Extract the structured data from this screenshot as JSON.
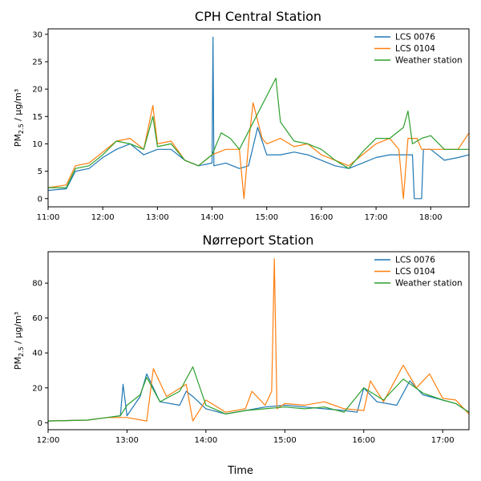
{
  "figure": {
    "xlabel": "Time",
    "ylabel_main": "PM",
    "ylabel_sub": "2.5",
    "ylabel_unit": " / µg/m³"
  },
  "chart_data": [
    {
      "type": "line",
      "title": "CPH Central Station",
      "xlabel": "",
      "ylabel": "PM2.5 / µg/m³",
      "x_unit": "time",
      "xlim": [
        "11:00",
        "18:42"
      ],
      "ylim": [
        -1.5,
        31
      ],
      "x_ticks": [
        "11:00",
        "12:00",
        "13:00",
        "14:00",
        "15:00",
        "16:00",
        "17:00",
        "18:00"
      ],
      "y_ticks": [
        0,
        5,
        10,
        15,
        20,
        25,
        30
      ],
      "grid": false,
      "legend_position": "top-right",
      "series": [
        {
          "name": "LCS 0076",
          "color": "#1f77b4",
          "points": [
            [
              "11:00",
              1.5
            ],
            [
              "11:20",
              1.8
            ],
            [
              "11:30",
              5
            ],
            [
              "11:45",
              5.5
            ],
            [
              "12:00",
              7.5
            ],
            [
              "12:15",
              9
            ],
            [
              "12:30",
              10
            ],
            [
              "12:45",
              8
            ],
            [
              "13:00",
              9
            ],
            [
              "13:15",
              9
            ],
            [
              "13:30",
              7
            ],
            [
              "13:45",
              6
            ],
            [
              "14:00",
              6.5
            ],
            [
              "14:01",
              29.5
            ],
            [
              "14:02",
              6
            ],
            [
              "14:15",
              6.5
            ],
            [
              "14:30",
              5.5
            ],
            [
              "14:40",
              6
            ],
            [
              "14:50",
              13
            ],
            [
              "15:00",
              8
            ],
            [
              "15:15",
              8
            ],
            [
              "15:30",
              8.5
            ],
            [
              "15:45",
              8
            ],
            [
              "16:00",
              7
            ],
            [
              "16:15",
              6
            ],
            [
              "16:30",
              5.5
            ],
            [
              "16:45",
              6.5
            ],
            [
              "17:00",
              7.5
            ],
            [
              "17:15",
              8
            ],
            [
              "17:30",
              8
            ],
            [
              "17:40",
              8
            ],
            [
              "17:42",
              0
            ],
            [
              "17:50",
              0
            ],
            [
              "17:52",
              9
            ],
            [
              "18:00",
              9
            ],
            [
              "18:15",
              7
            ],
            [
              "18:30",
              7.5
            ],
            [
              "18:42",
              8
            ]
          ]
        },
        {
          "name": "LCS 0104",
          "color": "#ff7f0e",
          "points": [
            [
              "11:00",
              2
            ],
            [
              "11:20",
              2.5
            ],
            [
              "11:30",
              6
            ],
            [
              "11:45",
              6.5
            ],
            [
              "12:00",
              8.5
            ],
            [
              "12:15",
              10.5
            ],
            [
              "12:30",
              11
            ],
            [
              "12:45",
              9
            ],
            [
              "12:55",
              17
            ],
            [
              "13:00",
              10
            ],
            [
              "13:15",
              10.5
            ],
            [
              "13:30",
              7
            ],
            [
              "13:45",
              6
            ],
            [
              "14:00",
              8
            ],
            [
              "14:15",
              9
            ],
            [
              "14:30",
              9
            ],
            [
              "14:35",
              0
            ],
            [
              "14:40",
              10
            ],
            [
              "14:45",
              17.5
            ],
            [
              "14:55",
              11
            ],
            [
              "15:00",
              10
            ],
            [
              "15:15",
              11
            ],
            [
              "15:30",
              9.5
            ],
            [
              "15:45",
              10
            ],
            [
              "16:00",
              8
            ],
            [
              "16:15",
              7
            ],
            [
              "16:30",
              6
            ],
            [
              "16:45",
              8
            ],
            [
              "17:00",
              10
            ],
            [
              "17:15",
              11
            ],
            [
              "17:25",
              9
            ],
            [
              "17:30",
              0
            ],
            [
              "17:35",
              11
            ],
            [
              "17:45",
              11
            ],
            [
              "17:50",
              9
            ],
            [
              "18:00",
              9
            ],
            [
              "18:15",
              9
            ],
            [
              "18:30",
              9
            ],
            [
              "18:42",
              12
            ]
          ]
        },
        {
          "name": "Weather station",
          "color": "#2ca02c",
          "points": [
            [
              "11:00",
              2
            ],
            [
              "11:20",
              2
            ],
            [
              "11:30",
              5.5
            ],
            [
              "11:45",
              6
            ],
            [
              "12:00",
              8
            ],
            [
              "12:15",
              10.5
            ],
            [
              "12:30",
              10
            ],
            [
              "12:45",
              9
            ],
            [
              "12:55",
              15
            ],
            [
              "13:00",
              9.5
            ],
            [
              "13:15",
              10
            ],
            [
              "13:30",
              7
            ],
            [
              "13:45",
              6
            ],
            [
              "14:00",
              8
            ],
            [
              "14:10",
              12
            ],
            [
              "14:20",
              11
            ],
            [
              "14:30",
              9
            ],
            [
              "15:10",
              22
            ],
            [
              "15:15",
              14
            ],
            [
              "15:30",
              10.5
            ],
            [
              "15:45",
              10
            ],
            [
              "16:00",
              9
            ],
            [
              "16:15",
              7
            ],
            [
              "16:30",
              5.5
            ],
            [
              "16:45",
              8.5
            ],
            [
              "17:00",
              11
            ],
            [
              "17:15",
              11
            ],
            [
              "17:30",
              13
            ],
            [
              "17:35",
              16
            ],
            [
              "17:40",
              10
            ],
            [
              "17:50",
              11
            ],
            [
              "18:00",
              11.5
            ],
            [
              "18:15",
              9
            ],
            [
              "18:30",
              9
            ],
            [
              "18:42",
              9
            ]
          ]
        }
      ]
    },
    {
      "type": "line",
      "title": "Nørreport Station",
      "xlabel": "Time",
      "ylabel": "PM2.5 / µg/m³",
      "x_unit": "time",
      "xlim": [
        "12:00",
        "17:20"
      ],
      "ylim": [
        -4,
        98
      ],
      "x_ticks": [
        "12:00",
        "13:00",
        "14:00",
        "15:00",
        "16:00",
        "17:00"
      ],
      "y_ticks": [
        0,
        20,
        40,
        60,
        80
      ],
      "grid": false,
      "legend_position": "top-right",
      "series": [
        {
          "name": "LCS 0076",
          "color": "#1f77b4",
          "points": [
            [
              "12:00",
              1
            ],
            [
              "12:30",
              1.5
            ],
            [
              "12:45",
              3
            ],
            [
              "12:55",
              4
            ],
            [
              "12:57",
              22
            ],
            [
              "13:00",
              4
            ],
            [
              "13:10",
              15
            ],
            [
              "13:15",
              28
            ],
            [
              "13:25",
              12
            ],
            [
              "13:40",
              10
            ],
            [
              "13:45",
              18
            ],
            [
              "13:50",
              15
            ],
            [
              "14:00",
              8
            ],
            [
              "14:15",
              5
            ],
            [
              "14:30",
              7
            ],
            [
              "14:45",
              9
            ],
            [
              "15:00",
              10
            ],
            [
              "15:15",
              9
            ],
            [
              "15:30",
              8
            ],
            [
              "15:45",
              7
            ],
            [
              "15:55",
              6
            ],
            [
              "16:00",
              20
            ],
            [
              "16:10",
              12
            ],
            [
              "16:25",
              10
            ],
            [
              "16:35",
              24
            ],
            [
              "16:45",
              16
            ],
            [
              "17:00",
              13
            ],
            [
              "17:10",
              11
            ],
            [
              "17:20",
              6
            ]
          ]
        },
        {
          "name": "LCS 0104",
          "color": "#ff7f0e",
          "points": [
            [
              "12:00",
              1
            ],
            [
              "12:30",
              1.5
            ],
            [
              "12:45",
              3
            ],
            [
              "13:00",
              3
            ],
            [
              "13:15",
              1
            ],
            [
              "13:20",
              31
            ],
            [
              "13:30",
              15
            ],
            [
              "13:45",
              22
            ],
            [
              "13:50",
              1
            ],
            [
              "14:00",
              13
            ],
            [
              "14:15",
              6
            ],
            [
              "14:30",
              8
            ],
            [
              "14:35",
              18
            ],
            [
              "14:45",
              10
            ],
            [
              "14:50",
              18
            ],
            [
              "14:52",
              94
            ],
            [
              "14:54",
              8
            ],
            [
              "15:00",
              11
            ],
            [
              "15:15",
              10
            ],
            [
              "15:30",
              12
            ],
            [
              "15:45",
              8
            ],
            [
              "16:00",
              7
            ],
            [
              "16:05",
              24
            ],
            [
              "16:15",
              12
            ],
            [
              "16:30",
              33
            ],
            [
              "16:40",
              20
            ],
            [
              "16:50",
              28
            ],
            [
              "17:00",
              14
            ],
            [
              "17:10",
              13
            ],
            [
              "17:20",
              5
            ]
          ]
        },
        {
          "name": "Weather station",
          "color": "#2ca02c",
          "points": [
            [
              "12:00",
              1
            ],
            [
              "12:30",
              1.5
            ],
            [
              "12:45",
              3
            ],
            [
              "12:55",
              4
            ],
            [
              "13:00",
              10
            ],
            [
              "13:10",
              16
            ],
            [
              "13:15",
              26
            ],
            [
              "13:25",
              12
            ],
            [
              "13:40",
              18
            ],
            [
              "13:50",
              32
            ],
            [
              "14:00",
              10
            ],
            [
              "14:15",
              5
            ],
            [
              "14:30",
              7
            ],
            [
              "14:45",
              8
            ],
            [
              "15:00",
              9
            ],
            [
              "15:15",
              8
            ],
            [
              "15:30",
              9
            ],
            [
              "15:45",
              6
            ],
            [
              "16:00",
              20
            ],
            [
              "16:15",
              13
            ],
            [
              "16:30",
              25
            ],
            [
              "16:45",
              17
            ],
            [
              "17:00",
              13
            ],
            [
              "17:10",
              11
            ],
            [
              "17:20",
              6
            ]
          ]
        }
      ]
    }
  ]
}
